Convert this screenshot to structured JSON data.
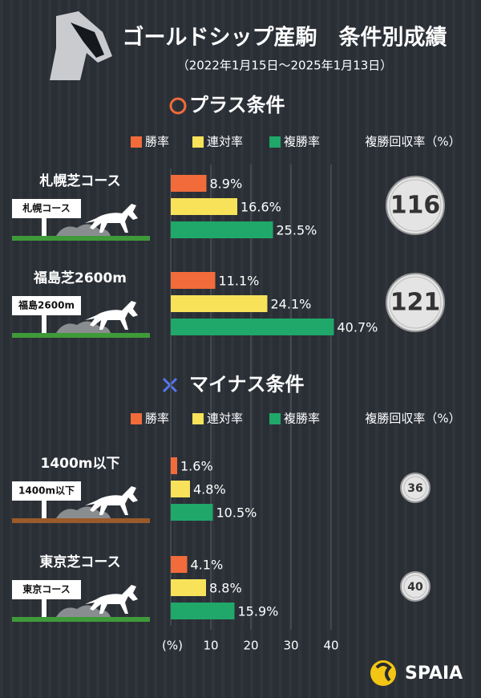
{
  "header": {
    "title": "ゴールドシップ産駒　条件別成績",
    "subtitle": "（2022年1月15日～2025年1月13日）"
  },
  "sections": [
    {
      "title": "プラス条件",
      "legend": {
        "series": [
          {
            "name": "勝率",
            "color": "#f26b3a"
          },
          {
            "name": "連対率",
            "color": "#f7e25a"
          },
          {
            "name": "複勝率",
            "color": "#1fa86a"
          }
        ],
        "recovery_label": "複勝回収率（%）"
      },
      "groups": [
        {
          "title": "札幌芝コース",
          "sign": "札幌コース",
          "values": [
            8.9,
            16.6,
            25.5
          ],
          "value_labels": [
            "8.9%",
            "16.6%",
            "25.5%"
          ],
          "recovery": 116
        },
        {
          "title": "福島芝2600m",
          "sign": "福島2600m",
          "values": [
            11.1,
            24.1,
            40.7
          ],
          "value_labels": [
            "11.1%",
            "24.1%",
            "40.7%"
          ],
          "recovery": 121
        }
      ]
    },
    {
      "title": "マイナス条件",
      "legend": {
        "series": [
          {
            "name": "勝率",
            "color": "#f26b3a"
          },
          {
            "name": "連対率",
            "color": "#f7e25a"
          },
          {
            "name": "複勝率",
            "color": "#1fa86a"
          }
        ],
        "recovery_label": "複勝回収率（%）"
      },
      "groups": [
        {
          "title": "1400m以下",
          "sign": "1400m以下",
          "values": [
            1.6,
            4.8,
            10.5
          ],
          "value_labels": [
            "1.6%",
            "4.8%",
            "10.5%"
          ],
          "recovery": 36
        },
        {
          "title": "東京芝コース",
          "sign": "東京コース",
          "values": [
            4.1,
            8.8,
            15.9
          ],
          "value_labels": [
            "4.1%",
            "8.8%",
            "15.9%"
          ],
          "recovery": 40
        }
      ]
    }
  ],
  "axis": {
    "unit": "(%)",
    "xlim": [
      0,
      40
    ],
    "xticks": [
      10,
      20,
      30,
      40
    ]
  },
  "logo": "SPAIA"
}
